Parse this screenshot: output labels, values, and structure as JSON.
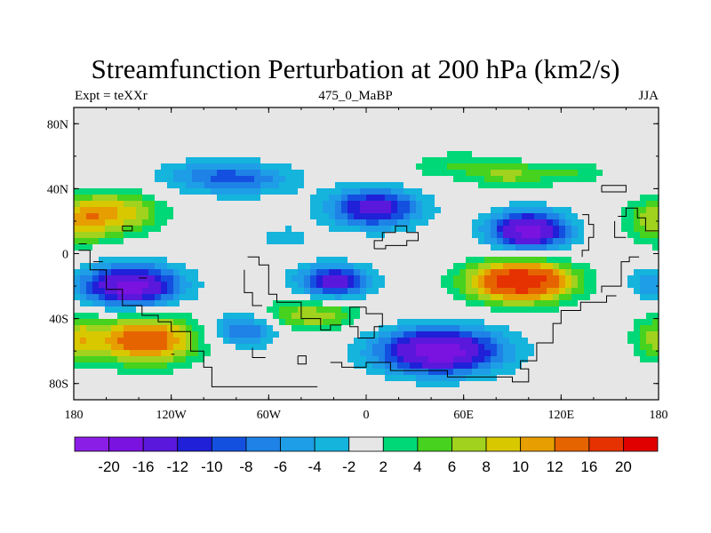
{
  "title": "Streamfunction Perturbation at 200 hPa (km2/s)",
  "subtitle_left": "Expt = teXXr",
  "subtitle_center": "475_0_MaBP",
  "subtitle_right": "JJA",
  "lon_ticks": [
    "180",
    "120W",
    "60W",
    "0",
    "60E",
    "120E",
    "180"
  ],
  "lat_ticks": [
    "80N",
    "40N",
    "0",
    "40S",
    "80S"
  ],
  "lat_tick_values": [
    80,
    40,
    0,
    -40,
    -80
  ],
  "lat_range": [
    -90,
    90
  ],
  "lon_range": [
    -180,
    180
  ],
  "colorbar": {
    "labels": [
      "-20",
      "-16",
      "-12",
      "-10",
      "-8",
      "-6",
      "-4",
      "-2",
      "2",
      "4",
      "6",
      "8",
      "10",
      "12",
      "16",
      "20"
    ],
    "colors": [
      "#8b1ee6",
      "#7a12e0",
      "#5a18dc",
      "#2020d8",
      "#1450e0",
      "#1e82e6",
      "#1e9ee6",
      "#14b4dc",
      "#e6e6e6",
      "#00d878",
      "#46d21e",
      "#a0d21e",
      "#d8c800",
      "#e69e00",
      "#e66400",
      "#e63200",
      "#e00000"
    ]
  },
  "field": {
    "features": [
      {
        "lon": -152,
        "lat": 25,
        "value": 9,
        "rx": 26,
        "ry": 14
      },
      {
        "lon": -145,
        "lat": -20,
        "value": -18,
        "rx": 30,
        "ry": 13
      },
      {
        "lon": -136,
        "lat": -53,
        "value": 15,
        "rx": 32,
        "ry": 15
      },
      {
        "lon": -75,
        "lat": -47,
        "value": -9,
        "rx": 20,
        "ry": 10
      },
      {
        "lon": -95,
        "lat": 48,
        "value": -5,
        "rx": 38,
        "ry": 10
      },
      {
        "lon": -75,
        "lat": 45,
        "value": -5,
        "rx": 34,
        "ry": 10
      },
      {
        "lon": -50,
        "lat": 10,
        "value": -3,
        "rx": 18,
        "ry": 8
      },
      {
        "lon": -20,
        "lat": -17,
        "value": -14,
        "rx": 22,
        "ry": 10
      },
      {
        "lon": -35,
        "lat": -38,
        "value": 8,
        "rx": 30,
        "ry": 9
      },
      {
        "lon": 5,
        "lat": 28,
        "value": -14,
        "rx": 28,
        "ry": 12
      },
      {
        "lon": 45,
        "lat": -60,
        "value": -19,
        "rx": 38,
        "ry": 14
      },
      {
        "lon": 95,
        "lat": -17,
        "value": 20,
        "rx": 32,
        "ry": 13
      },
      {
        "lon": 100,
        "lat": 14,
        "value": -18,
        "rx": 24,
        "ry": 12
      },
      {
        "lon": 55,
        "lat": 54,
        "value": 4,
        "rx": 30,
        "ry": 9
      },
      {
        "lon": 90,
        "lat": 48,
        "value": 6,
        "rx": 22,
        "ry": 8
      },
      {
        "lon": 128,
        "lat": 50,
        "value": 4,
        "rx": 20,
        "ry": 8
      },
      {
        "lon": 178,
        "lat": 20,
        "value": 8,
        "rx": 18,
        "ry": 14
      },
      {
        "lon": 175,
        "lat": -18,
        "value": -6,
        "rx": 14,
        "ry": 10
      },
      {
        "lon": 178,
        "lat": -52,
        "value": 7,
        "rx": 14,
        "ry": 14
      },
      {
        "lon": -178,
        "lat": -52,
        "value": 7,
        "rx": 14,
        "ry": 14
      },
      {
        "lon": -175,
        "lat": 20,
        "value": 8,
        "rx": 16,
        "ry": 14
      }
    ]
  }
}
